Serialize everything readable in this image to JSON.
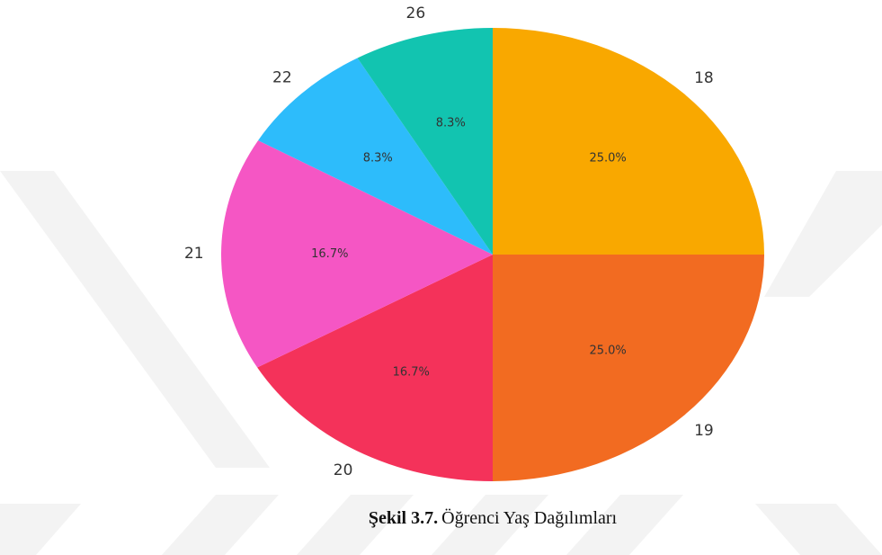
{
  "chart_data": {
    "type": "pie",
    "caption_label": "Şekil 3.7.",
    "title": "Öğrenci Yaş Dağılımları",
    "categories": [
      "18",
      "19",
      "20",
      "21",
      "22",
      "26"
    ],
    "values": [
      25,
      25,
      16.7,
      16.7,
      8.3,
      8.3
    ],
    "value_labels": [
      "25.0%",
      "25.0%",
      "16.7%",
      "16.7%",
      "8.3%",
      "8.3%"
    ],
    "colors": [
      "#f9a800",
      "#f26b21",
      "#f4325a",
      "#f556c4",
      "#2dbcfb",
      "#12c4b0"
    ],
    "start_angle": 90,
    "direction": "clockwise"
  }
}
